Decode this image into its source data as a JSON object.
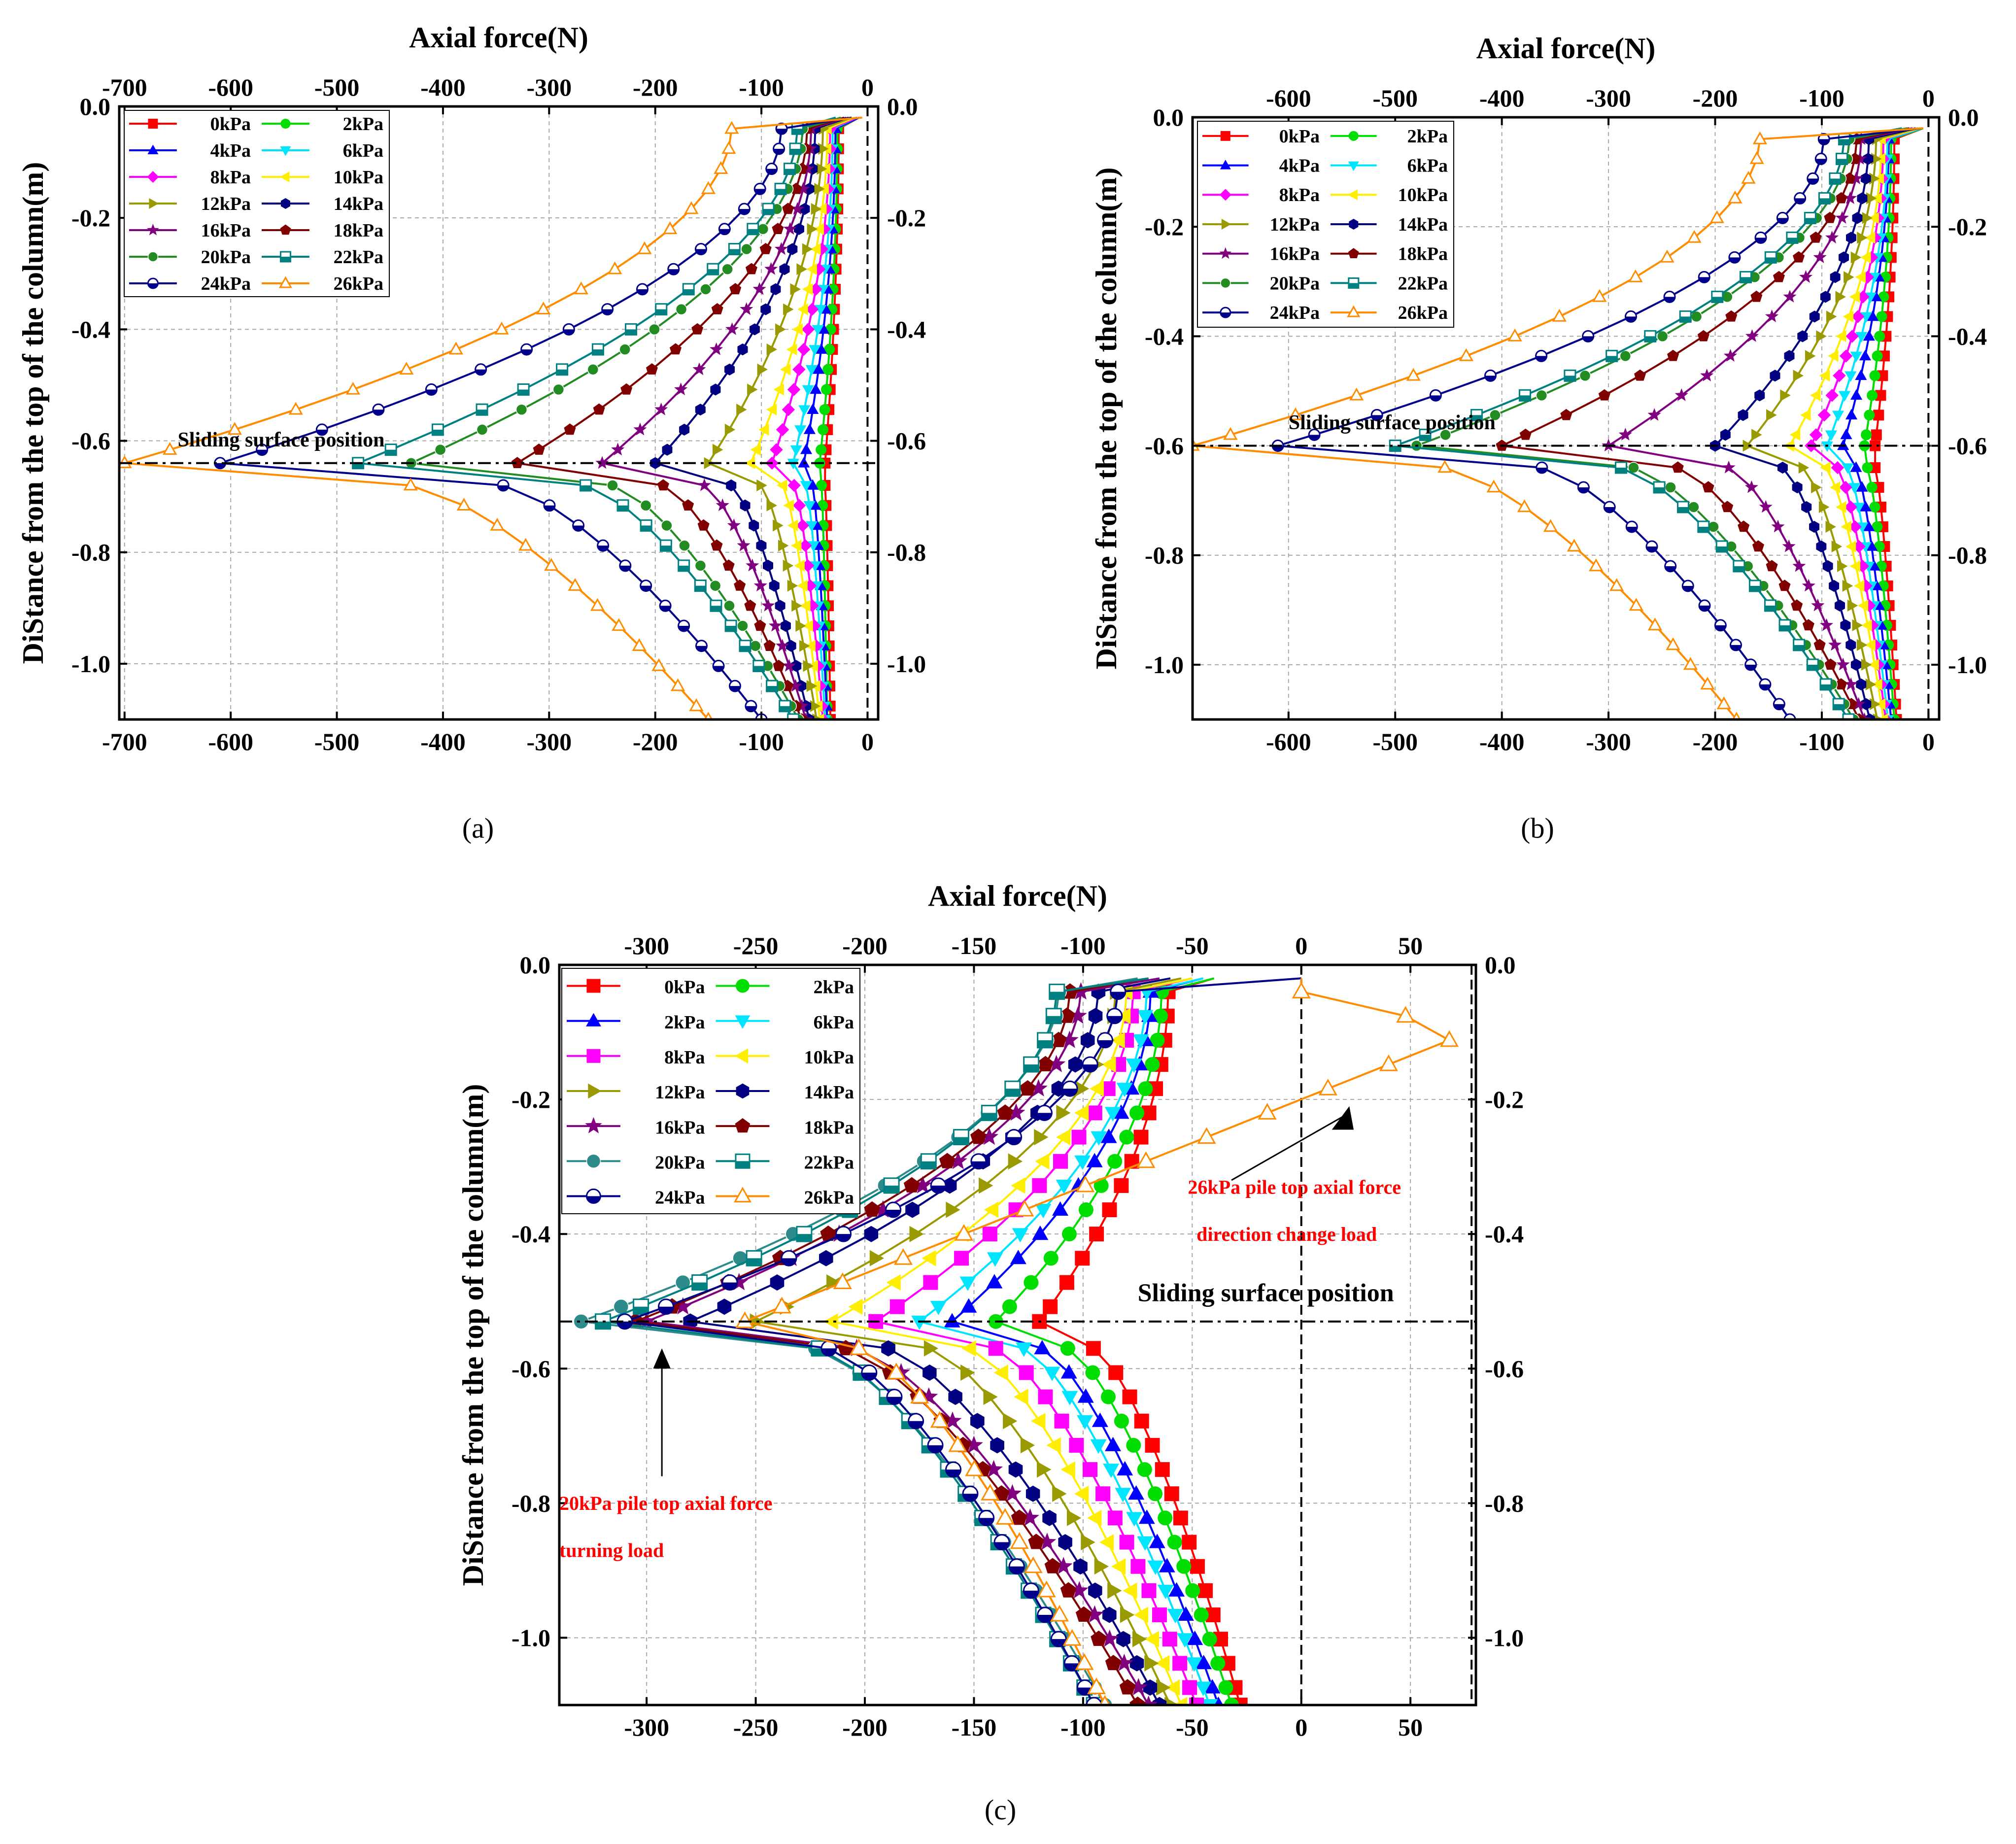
{
  "figure": {
    "panels": [
      {
        "id": "a",
        "caption": "(a)",
        "legend_labels": [
          "0kPa",
          "2kPa",
          "4kPa",
          "6kPa",
          "8kPa",
          "10kPa",
          "12kPa",
          "14kPa",
          "16kPa",
          "18kPa",
          "20kPa",
          "22kPa",
          "24kPa",
          "26kPa"
        ]
      },
      {
        "id": "b",
        "caption": "(b)",
        "legend_labels": [
          "0kPa",
          "2kPa",
          "4kPa",
          "6kPa",
          "8kPa",
          "10kPa",
          "12kPa",
          "14kPa",
          "16kPa",
          "18kPa",
          "20kPa",
          "22kPa",
          "24kPa",
          "26kPa"
        ]
      },
      {
        "id": "c",
        "caption": "(c)",
        "legend_labels": [
          "0kPa",
          "2kPa",
          "2kPa",
          "6kPa",
          "8kPa",
          "10kPa",
          "12kPa",
          "14kPa",
          "16kPa",
          "18kPa",
          "20kPa",
          "22kPa",
          "24kPa",
          "26kPa"
        ]
      }
    ]
  },
  "chart_data": [
    {
      "panel": "a",
      "type": "line",
      "title": "",
      "xlabel": "Axial force(N)",
      "ylabel": "DiStance from the top of the column(m)",
      "xlim": [
        -705,
        10
      ],
      "ylim": [
        -1.1,
        0.0
      ],
      "xticks": [
        -700,
        -600,
        -500,
        -400,
        -300,
        -200,
        -100,
        0
      ],
      "yticks": [
        0.0,
        -0.2,
        -0.4,
        -0.6,
        -0.8,
        -1.0
      ],
      "grid": true,
      "legend_position": "top-left",
      "sliding_surface_depth": -0.64,
      "annotations": [
        {
          "text": "Sliding surface position",
          "x": -650,
          "y": -0.61,
          "color": "#000000"
        }
      ],
      "series": [
        {
          "name": "0kPa",
          "color": "#ff0000",
          "marker": "square",
          "top": -8,
          "slide": -40,
          "after": -40,
          "bottom": -35
        },
        {
          "name": "2kPa",
          "color": "#00dd00",
          "marker": "circle",
          "top": -8,
          "slide": -45,
          "after": -42,
          "bottom": -38
        },
        {
          "name": "4kPa",
          "color": "#0000ff",
          "marker": "triangle-up",
          "top": -8,
          "slide": -60,
          "after": -45,
          "bottom": -38
        },
        {
          "name": "6kPa",
          "color": "#00e5ff",
          "marker": "triangle-down",
          "top": -10,
          "slide": -70,
          "after": -48,
          "bottom": -40
        },
        {
          "name": "8kPa",
          "color": "#ff00ff",
          "marker": "diamond",
          "top": -10,
          "slide": -90,
          "after": -52,
          "bottom": -42
        },
        {
          "name": "10kPa",
          "color": "#ffee00",
          "marker": "triangle-left",
          "top": -12,
          "slide": -110,
          "after": -55,
          "bottom": -45
        },
        {
          "name": "12kPa",
          "color": "#999900",
          "marker": "triangle-right",
          "top": -15,
          "slide": -150,
          "after": -60,
          "bottom": -48
        },
        {
          "name": "14kPa",
          "color": "#000080",
          "marker": "hexagon",
          "top": -18,
          "slide": -200,
          "after": -70,
          "bottom": -55
        },
        {
          "name": "16kPa",
          "color": "#800080",
          "marker": "star",
          "top": -20,
          "slide": -250,
          "after": -75,
          "bottom": -58
        },
        {
          "name": "18kPa",
          "color": "#800000",
          "marker": "pentagon",
          "top": -22,
          "slide": -330,
          "after": -80,
          "bottom": -62
        },
        {
          "name": "20kPa",
          "color": "#228b22",
          "marker": "circle-dot",
          "top": -25,
          "slide": -430,
          "after": -85,
          "bottom": -65
        },
        {
          "name": "22kPa",
          "color": "#008080",
          "marker": "square-half",
          "top": -30,
          "slide": -480,
          "after": -90,
          "bottom": -70
        },
        {
          "name": "24kPa",
          "color": "#00008b",
          "marker": "circle-half",
          "top": -15,
          "slide": -610,
          "after": -125,
          "bottom": -100
        },
        {
          "name": "26kPa",
          "color": "#ff8c00",
          "marker": "triangle-open",
          "top": -5,
          "slide": -700,
          "after": -210,
          "bottom": -150
        }
      ]
    },
    {
      "panel": "b",
      "type": "line",
      "title": "",
      "xlabel": "Axial force(N)",
      "ylabel": "DiStance from the top of the column(m)",
      "xlim": [
        -690,
        10
      ],
      "ylim": [
        -1.1,
        0.0
      ],
      "xticks": [
        -600,
        -500,
        -400,
        -300,
        -200,
        -100,
        0
      ],
      "yticks": [
        0.0,
        -0.2,
        -0.4,
        -0.6,
        -0.8,
        -1.0
      ],
      "grid": true,
      "legend_position": "top-left",
      "sliding_surface_depth": -0.6,
      "annotations": [
        {
          "text": "Sliding surface position",
          "x": -600,
          "y": -0.57,
          "color": "#000000"
        }
      ],
      "series": [
        {
          "name": "0kPa",
          "color": "#ff0000",
          "marker": "square",
          "top": -5,
          "slide": -50,
          "after": -50,
          "bottom": -30
        },
        {
          "name": "2kPa",
          "color": "#00dd00",
          "marker": "circle",
          "top": -5,
          "slide": -60,
          "after": -55,
          "bottom": -32
        },
        {
          "name": "4kPa",
          "color": "#0000ff",
          "marker": "triangle-up",
          "top": -6,
          "slide": -80,
          "after": -58,
          "bottom": -35
        },
        {
          "name": "6kPa",
          "color": "#00e5ff",
          "marker": "triangle-down",
          "top": -6,
          "slide": -95,
          "after": -60,
          "bottom": -38
        },
        {
          "name": "8kPa",
          "color": "#ff00ff",
          "marker": "diamond",
          "top": -8,
          "slide": -110,
          "after": -65,
          "bottom": -40
        },
        {
          "name": "10kPa",
          "color": "#ffee00",
          "marker": "triangle-left",
          "top": -8,
          "slide": -130,
          "after": -68,
          "bottom": -42
        },
        {
          "name": "12kPa",
          "color": "#999900",
          "marker": "triangle-right",
          "top": -10,
          "slide": -170,
          "after": -75,
          "bottom": -48
        },
        {
          "name": "14kPa",
          "color": "#000080",
          "marker": "hexagon",
          "top": -12,
          "slide": -200,
          "after": -85,
          "bottom": -55
        },
        {
          "name": "16kPa",
          "color": "#800080",
          "marker": "star",
          "top": -15,
          "slide": -300,
          "after": -95,
          "bottom": -60
        },
        {
          "name": "18kPa",
          "color": "#800000",
          "marker": "pentagon",
          "top": -18,
          "slide": -400,
          "after": -100,
          "bottom": -65
        },
        {
          "name": "20kPa",
          "color": "#228b22",
          "marker": "circle-dot",
          "top": -20,
          "slide": -480,
          "after": -110,
          "bottom": -70
        },
        {
          "name": "22kPa",
          "color": "#008080",
          "marker": "square-half",
          "top": -25,
          "slide": -500,
          "after": -115,
          "bottom": -75
        },
        {
          "name": "24kPa",
          "color": "#00008b",
          "marker": "circle-half",
          "top": -5,
          "slide": -610,
          "after": -160,
          "bottom": -130
        },
        {
          "name": "26kPa",
          "color": "#ff8c00",
          "marker": "triangle-open",
          "top": -5,
          "slide": -690,
          "after": -260,
          "bottom": -180
        }
      ]
    },
    {
      "panel": "c",
      "type": "line",
      "title": "",
      "xlabel": "Axial force(N)",
      "ylabel": "DiStance from the top of the column(m)",
      "xlim": [
        -340,
        80
      ],
      "ylim": [
        -1.1,
        0.0
      ],
      "xticks": [
        -300,
        -250,
        -200,
        -150,
        -100,
        -50,
        0,
        50
      ],
      "yticks": [
        0.0,
        -0.2,
        -0.4,
        -0.6,
        -0.8,
        -1.0
      ],
      "grid": true,
      "legend_position": "top-left",
      "sliding_surface_depth": -0.53,
      "annotations": [
        {
          "text": "Sliding surface position",
          "x": -75,
          "y": -0.5,
          "color": "#000000"
        },
        {
          "text": "26kPa pile top axial force",
          "x": -52,
          "y": -0.34,
          "color": "#ff0000"
        },
        {
          "text": "direction change load",
          "x": -48,
          "y": -0.41,
          "color": "#ff0000"
        },
        {
          "text": "20kPa pile top axial force",
          "x": -340,
          "y": -0.81,
          "color": "#ff0000"
        },
        {
          "text": "turning load",
          "x": -340,
          "y": -0.88,
          "color": "#ff0000"
        }
      ],
      "series": [
        {
          "name": "0kPa",
          "color": "#ff0000",
          "marker": "square",
          "top": -40,
          "slide": -120,
          "after": -75,
          "bottom": -28
        },
        {
          "name": "2kPa",
          "color": "#00dd00",
          "marker": "circle",
          "top": -40,
          "slide": -140,
          "after": -80,
          "bottom": -32
        },
        {
          "name": "2kPa",
          "color": "#0000ff",
          "marker": "triangle-up",
          "top": -45,
          "slide": -160,
          "after": -85,
          "bottom": -38
        },
        {
          "name": "6kPa",
          "color": "#00e5ff",
          "marker": "triangle-down",
          "top": -45,
          "slide": -175,
          "after": -88,
          "bottom": -42
        },
        {
          "name": "8kPa",
          "color": "#ff00ff",
          "marker": "square",
          "top": -50,
          "slide": -195,
          "after": -95,
          "bottom": -48
        },
        {
          "name": "10kPa",
          "color": "#ffee00",
          "marker": "triangle-left",
          "top": -50,
          "slide": -215,
          "after": -100,
          "bottom": -55
        },
        {
          "name": "12kPa",
          "color": "#999900",
          "marker": "triangle-right",
          "top": -55,
          "slide": -250,
          "after": -105,
          "bottom": -60
        },
        {
          "name": "14kPa",
          "color": "#000080",
          "marker": "hexagon",
          "top": -60,
          "slide": -280,
          "after": -115,
          "bottom": -65
        },
        {
          "name": "16kPa",
          "color": "#800080",
          "marker": "star",
          "top": -65,
          "slide": -300,
          "after": -125,
          "bottom": -70
        },
        {
          "name": "18kPa",
          "color": "#800000",
          "marker": "pentagon",
          "top": -70,
          "slide": -305,
          "after": -130,
          "bottom": -75
        },
        {
          "name": "20kPa",
          "color": "#2e8b8b",
          "marker": "circle-dot",
          "top": -75,
          "slide": -330,
          "after": -135,
          "bottom": -90
        },
        {
          "name": "22kPa",
          "color": "#008080",
          "marker": "square-half",
          "top": -70,
          "slide": -320,
          "after": -140,
          "bottom": -95
        },
        {
          "name": "24kPa",
          "color": "#00008b",
          "marker": "circle-half",
          "top": 0,
          "slide": -310,
          "after": -140,
          "bottom": -95
        },
        {
          "name": "26kPa",
          "color": "#ff8c00",
          "marker": "triangle-open",
          "top": 0,
          "peak": 78,
          "slide": -255,
          "after": -160,
          "bottom": -90
        }
      ]
    }
  ]
}
